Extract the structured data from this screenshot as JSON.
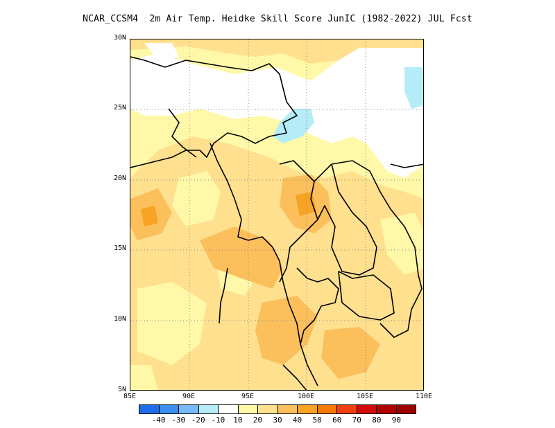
{
  "title": "NCAR_CCSM4  2m Air Temp. Heidke Skill Score JunIC (1982-2022) JUL Fcst",
  "map": {
    "region": "Mainland Southeast Asia",
    "lon_range": [
      85,
      110
    ],
    "lat_range": [
      5,
      30
    ],
    "grid": true,
    "lat_ticks": [
      "30N",
      "25N",
      "20N",
      "15N",
      "10N",
      "5N"
    ],
    "lon_ticks": [
      "85E",
      "90E",
      "95E",
      "100E",
      "105E",
      "110E"
    ]
  },
  "colorbar": {
    "labels": [
      "-40",
      "-30",
      "-20",
      "-10",
      "10",
      "20",
      "30",
      "40",
      "50",
      "60",
      "70",
      "80",
      "90"
    ],
    "colors": [
      "#1e6eeb",
      "#3a8ff0",
      "#78b9f7",
      "#b4ecf8",
      "#ffffff",
      "#fff8a8",
      "#fee08e",
      "#fbbf5c",
      "#f7a324",
      "#f57800",
      "#f04010",
      "#d20a0a",
      "#b20000",
      "#a00000"
    ]
  }
}
